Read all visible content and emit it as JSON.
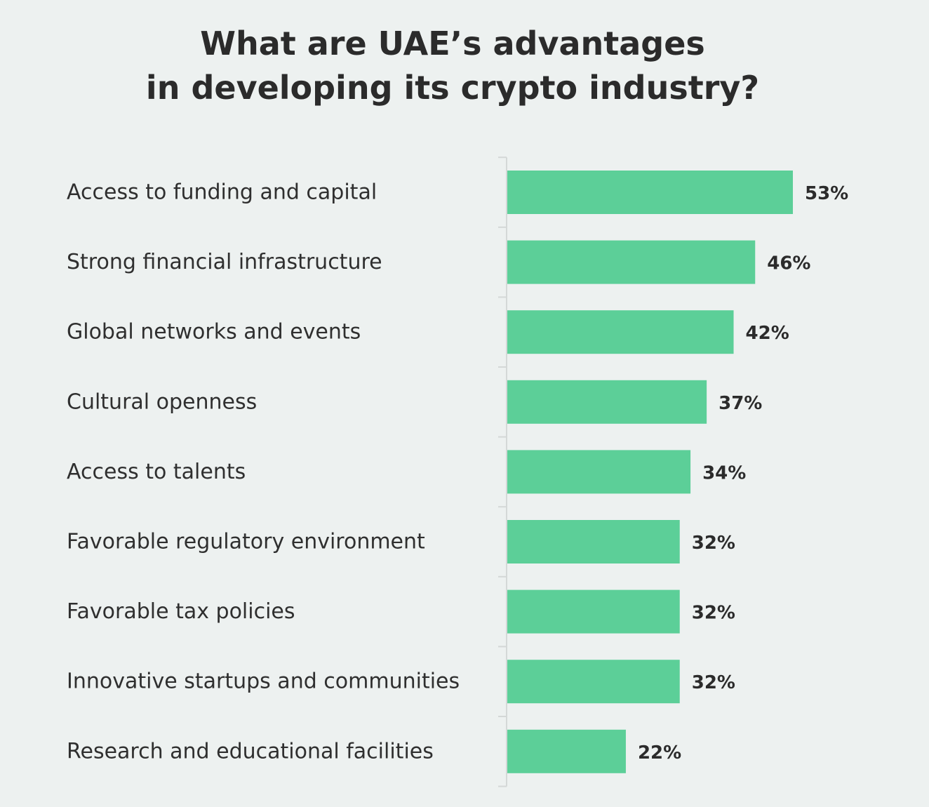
{
  "chart_data": {
    "type": "bar",
    "orientation": "horizontal",
    "title_lines": [
      "What are UAE’s advantages",
      "in developing its crypto industry?"
    ],
    "categories": [
      "Access to funding and capital",
      "Strong financial infrastructure",
      "Global networks and events",
      "Cultural openness",
      "Access to talents",
      "Favorable regulatory environment",
      "Favorable tax policies",
      "Innovative startups and communities",
      "Research and educational facilities"
    ],
    "values": [
      53,
      46,
      42,
      37,
      34,
      32,
      32,
      32,
      22
    ],
    "value_labels": [
      "53%",
      "46%",
      "42%",
      "37%",
      "34%",
      "32%",
      "32%",
      "32%",
      "22%"
    ],
    "xlim": [
      0,
      100
    ],
    "grid": false,
    "legend": "none",
    "colors": {
      "bar": "#5ccf98",
      "axis": "#d4d8d7",
      "text": "#2b2b2b",
      "background": "#edf1f0"
    }
  }
}
